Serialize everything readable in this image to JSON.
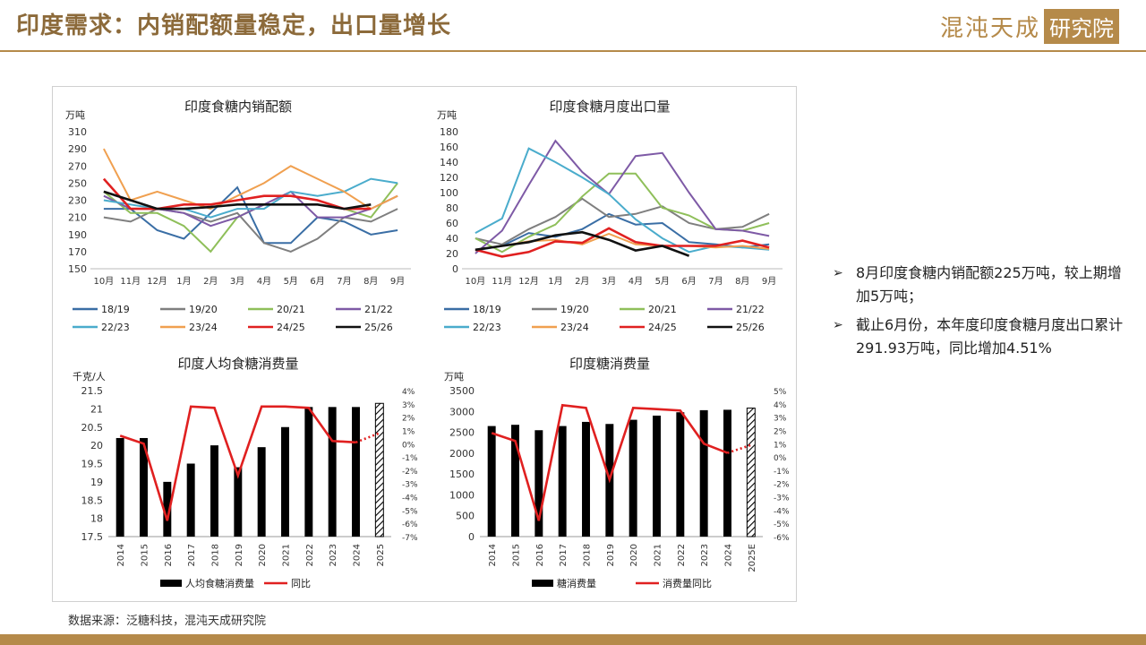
{
  "header": {
    "title": "印度需求：内销配额量稳定，出口量增长",
    "logo_text": "混沌天成",
    "logo_box": "研究院"
  },
  "footer": {
    "source": "数据来源：泛糖科技，混沌天成研究院"
  },
  "notes": [
    "8月印度食糖内销配额225万吨，较上期增加5万吨；",
    "截止6月份，本年度印度食糖月度出口累计291.93万吨，同比增加4.51%"
  ],
  "colors": {
    "accent": "#b58a4a"
  },
  "chart_data": [
    {
      "type": "line",
      "title": "印度食糖内销配额",
      "ylabel": "万吨",
      "ylim": [
        150,
        310
      ],
      "yticks": [
        150,
        170,
        190,
        210,
        230,
        250,
        270,
        290,
        310
      ],
      "categories": [
        "10月",
        "11月",
        "12月",
        "1月",
        "2月",
        "3月",
        "4月",
        "5月",
        "6月",
        "7月",
        "8月",
        "9月"
      ],
      "series": [
        {
          "name": "18/19",
          "color": "#3a6ea5",
          "values": [
            220,
            220,
            195,
            185,
            215,
            245,
            180,
            180,
            210,
            205,
            190,
            195
          ]
        },
        {
          "name": "19/20",
          "color": "#7f7f7f",
          "values": [
            210,
            205,
            220,
            215,
            205,
            215,
            180,
            170,
            185,
            210,
            205,
            220
          ]
        },
        {
          "name": "20/21",
          "color": "#8fbf5a",
          "values": [
            240,
            215,
            215,
            200,
            170,
            210,
            225,
            225,
            225,
            220,
            210,
            250
          ]
        },
        {
          "name": "21/22",
          "color": "#7e5aa6",
          "values": [
            235,
            220,
            220,
            215,
            200,
            210,
            225,
            240,
            210,
            210,
            220,
            235
          ]
        },
        {
          "name": "22/23",
          "color": "#4aaccc",
          "values": [
            230,
            225,
            220,
            220,
            210,
            220,
            220,
            240,
            235,
            240,
            255,
            250
          ]
        },
        {
          "name": "23/24",
          "color": "#f0a050",
          "values": [
            290,
            230,
            240,
            230,
            220,
            235,
            250,
            270,
            255,
            240,
            220,
            235
          ]
        },
        {
          "name": "24/25",
          "color": "#e02020",
          "values": [
            255,
            220,
            220,
            225,
            225,
            230,
            235,
            235,
            230,
            220,
            220,
            null
          ]
        },
        {
          "name": "25/26",
          "color": "#111111",
          "values": [
            240,
            230,
            220,
            220,
            222,
            225,
            225,
            225,
            225,
            220,
            225,
            null
          ]
        }
      ]
    },
    {
      "type": "line",
      "title": "印度食糖月度出口量",
      "ylabel": "万吨",
      "ylim": [
        0,
        180
      ],
      "yticks": [
        0,
        20,
        40,
        60,
        80,
        100,
        120,
        140,
        160,
        180
      ],
      "categories": [
        "10月",
        "11月",
        "12月",
        "1月",
        "2月",
        "3月",
        "4月",
        "5月",
        "6月",
        "7月",
        "8月",
        "9月"
      ],
      "series": [
        {
          "name": "18/19",
          "color": "#3a6ea5",
          "values": [
            24,
            30,
            47,
            42,
            52,
            72,
            58,
            60,
            35,
            32,
            28,
            32
          ]
        },
        {
          "name": "19/20",
          "color": "#7f7f7f",
          "values": [
            40,
            32,
            52,
            68,
            92,
            68,
            72,
            82,
            60,
            52,
            55,
            72
          ]
        },
        {
          "name": "20/21",
          "color": "#8fbf5a",
          "values": [
            40,
            22,
            42,
            58,
            95,
            125,
            125,
            80,
            70,
            52,
            50,
            60
          ]
        },
        {
          "name": "21/22",
          "color": "#7e5aa6",
          "values": [
            20,
            50,
            110,
            168,
            127,
            98,
            148,
            152,
            100,
            52,
            50,
            43
          ]
        },
        {
          "name": "22/23",
          "color": "#4aaccc",
          "values": [
            47,
            66,
            158,
            140,
            120,
            98,
            65,
            40,
            22,
            30,
            28,
            25
          ]
        },
        {
          "name": "23/24",
          "color": "#f0a050",
          "values": [
            25,
            30,
            36,
            38,
            32,
            46,
            32,
            30,
            30,
            28,
            30,
            26
          ]
        },
        {
          "name": "24/25",
          "color": "#e02020",
          "values": [
            25,
            16,
            22,
            36,
            34,
            53,
            35,
            30,
            30,
            30,
            37,
            28
          ]
        },
        {
          "name": "25/26",
          "color": "#111111",
          "values": [
            25,
            30,
            35,
            44,
            48,
            38,
            24,
            30,
            17,
            null,
            null,
            null
          ]
        }
      ]
    },
    {
      "type": "bar",
      "title": "印度人均食糖消费量",
      "ylabel": "千克/人",
      "ylim": [
        17.5,
        21.5
      ],
      "yticks": [
        17.5,
        18,
        18.5,
        19,
        19.5,
        20,
        20.5,
        21,
        21.5
      ],
      "y2lim": [
        -7,
        4
      ],
      "y2ticks": [
        -7,
        -6,
        -5,
        -4,
        -3,
        -2,
        -1,
        0,
        1,
        2,
        3,
        4
      ],
      "categories": [
        "2014",
        "2015",
        "2016",
        "2017",
        "2018",
        "2019",
        "2020",
        "2021",
        "2022",
        "2023",
        "2024",
        "2025"
      ],
      "series": [
        {
          "name": "人均食糖消费量",
          "color": "#000000",
          "values": [
            20.2,
            20.2,
            19.0,
            19.5,
            20.0,
            19.4,
            19.95,
            20.5,
            21.05,
            21.05,
            21.05,
            21.15
          ]
        },
        {
          "name": "同比",
          "color": "#e02020",
          "axis": "right",
          "values": [
            0.6,
            0,
            -5.8,
            2.8,
            2.7,
            -2.4,
            2.8,
            2.8,
            2.7,
            0.2,
            0.1,
            0.8
          ]
        }
      ],
      "hatched_last": true,
      "dotted_last_segment": true
    },
    {
      "type": "bar",
      "title": "印度糖消费量",
      "ylabel": "万吨",
      "ylim": [
        0,
        3500
      ],
      "yticks": [
        0,
        500,
        1000,
        1500,
        2000,
        2500,
        3000,
        3500
      ],
      "y2lim": [
        -6,
        5
      ],
      "y2ticks": [
        -6,
        -5,
        -4,
        -3,
        -2,
        -1,
        0,
        1,
        2,
        3,
        4,
        5
      ],
      "categories": [
        "2014",
        "2015",
        "2016",
        "2017",
        "2018",
        "2019",
        "2020",
        "2021",
        "2022",
        "2023",
        "2024",
        "2025E"
      ],
      "series": [
        {
          "name": "糖消费量",
          "color": "#000000",
          "values": [
            2650,
            2680,
            2550,
            2650,
            2750,
            2700,
            2800,
            2900,
            2980,
            3030,
            3040,
            3080
          ]
        },
        {
          "name": "消费量同比",
          "color": "#e02020",
          "axis": "right",
          "values": [
            1.8,
            1.2,
            -4.8,
            3.9,
            3.7,
            -1.7,
            3.7,
            3.6,
            3.5,
            1.0,
            0.3,
            0.9
          ]
        }
      ],
      "hatched_last": true,
      "dotted_last_segment": true
    }
  ]
}
